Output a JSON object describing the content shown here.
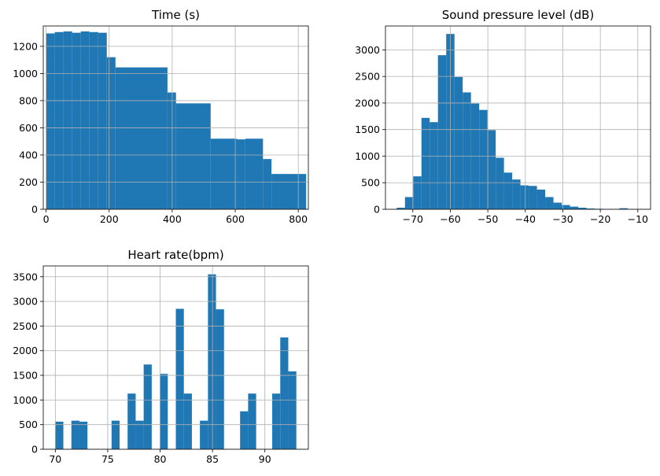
{
  "chart_data": [
    {
      "type": "bar",
      "title": "Time (s)",
      "xlabel": "",
      "ylabel": "",
      "x_range": [
        -9,
        832
      ],
      "y_range": [
        0,
        1350
      ],
      "x_ticks": [
        0,
        200,
        400,
        600,
        800
      ],
      "y_ticks": [
        0,
        200,
        400,
        600,
        800,
        1000,
        1200
      ],
      "grid": true,
      "bins": [
        {
          "x0": 0,
          "x1": 27.5,
          "value": 1295
        },
        {
          "x0": 27.5,
          "x1": 55,
          "value": 1305
        },
        {
          "x0": 55,
          "x1": 82.5,
          "value": 1310
        },
        {
          "x0": 82.5,
          "x1": 110,
          "value": 1300
        },
        {
          "x0": 110,
          "x1": 137.5,
          "value": 1310
        },
        {
          "x0": 137.5,
          "x1": 165,
          "value": 1305
        },
        {
          "x0": 165,
          "x1": 192.5,
          "value": 1300
        },
        {
          "x0": 192.5,
          "x1": 220,
          "value": 1120
        },
        {
          "x0": 220,
          "x1": 385,
          "value": 1045
        },
        {
          "x0": 385,
          "x1": 412,
          "value": 860
        },
        {
          "x0": 412,
          "x1": 522,
          "value": 780
        },
        {
          "x0": 522,
          "x1": 605,
          "value": 520
        },
        {
          "x0": 605,
          "x1": 632,
          "value": 515
        },
        {
          "x0": 632,
          "x1": 688,
          "value": 520
        },
        {
          "x0": 688,
          "x1": 715,
          "value": 370
        },
        {
          "x0": 715,
          "x1": 825,
          "value": 260
        }
      ]
    },
    {
      "type": "bar",
      "title": "Sound pressure level (dB)",
      "xlabel": "",
      "ylabel": "",
      "x_range": [
        -77.3,
        -6.6
      ],
      "y_range": [
        0,
        3450
      ],
      "x_ticks": [
        -70,
        -60,
        -50,
        -40,
        -30,
        -20,
        -10
      ],
      "y_ticks": [
        0,
        500,
        1000,
        1500,
        2000,
        2500,
        3000
      ],
      "grid": true,
      "bins": [
        {
          "x0": -74.3,
          "x1": -72.1,
          "value": 30
        },
        {
          "x0": -72.1,
          "x1": -69.9,
          "value": 230
        },
        {
          "x0": -69.9,
          "x1": -67.7,
          "value": 620
        },
        {
          "x0": -67.7,
          "x1": -65.5,
          "value": 1720
        },
        {
          "x0": -65.5,
          "x1": -63.3,
          "value": 1640
        },
        {
          "x0": -63.3,
          "x1": -61.1,
          "value": 2900
        },
        {
          "x0": -61.1,
          "x1": -58.9,
          "value": 3300
        },
        {
          "x0": -58.9,
          "x1": -56.7,
          "value": 2490
        },
        {
          "x0": -56.7,
          "x1": -54.5,
          "value": 2200
        },
        {
          "x0": -54.5,
          "x1": -52.3,
          "value": 1990
        },
        {
          "x0": -52.3,
          "x1": -50.1,
          "value": 1870
        },
        {
          "x0": -50.1,
          "x1": -47.9,
          "value": 1490
        },
        {
          "x0": -47.9,
          "x1": -45.7,
          "value": 970
        },
        {
          "x0": -45.7,
          "x1": -43.5,
          "value": 690
        },
        {
          "x0": -43.5,
          "x1": -41.3,
          "value": 560
        },
        {
          "x0": -41.3,
          "x1": -39.1,
          "value": 450
        },
        {
          "x0": -39.1,
          "x1": -36.9,
          "value": 440
        },
        {
          "x0": -36.9,
          "x1": -34.7,
          "value": 370
        },
        {
          "x0": -34.7,
          "x1": -32.5,
          "value": 230
        },
        {
          "x0": -32.5,
          "x1": -30.3,
          "value": 125
        },
        {
          "x0": -30.3,
          "x1": -28.1,
          "value": 80
        },
        {
          "x0": -28.1,
          "x1": -25.9,
          "value": 50
        },
        {
          "x0": -25.9,
          "x1": -23.7,
          "value": 30
        },
        {
          "x0": -23.7,
          "x1": -21.5,
          "value": 15
        },
        {
          "x0": -21.5,
          "x1": -19.3,
          "value": 10
        },
        {
          "x0": -19.3,
          "x1": -17.1,
          "value": 5
        },
        {
          "x0": -17.1,
          "x1": -14.9,
          "value": 5
        },
        {
          "x0": -14.9,
          "x1": -12.7,
          "value": 20
        },
        {
          "x0": -12.7,
          "x1": -10.5,
          "value": 5
        }
      ]
    },
    {
      "type": "bar",
      "title": "Heart rate(bpm)",
      "xlabel": "",
      "ylabel": "",
      "x_range": [
        68.85,
        94.15
      ],
      "y_range": [
        0,
        3720
      ],
      "x_ticks": [
        70,
        75,
        80,
        85,
        90
      ],
      "y_ticks": [
        0,
        500,
        1000,
        1500,
        2000,
        2500,
        3000,
        3500
      ],
      "grid": true,
      "bins": [
        {
          "x0": 70.0,
          "x1": 70.767,
          "value": 560
        },
        {
          "x0": 71.533,
          "x1": 72.3,
          "value": 580
        },
        {
          "x0": 72.3,
          "x1": 73.067,
          "value": 560
        },
        {
          "x0": 75.367,
          "x1": 76.133,
          "value": 580
        },
        {
          "x0": 76.9,
          "x1": 77.667,
          "value": 1130
        },
        {
          "x0": 77.667,
          "x1": 78.433,
          "value": 580
        },
        {
          "x0": 78.433,
          "x1": 79.2,
          "value": 1720
        },
        {
          "x0": 79.967,
          "x1": 80.733,
          "value": 1530
        },
        {
          "x0": 81.5,
          "x1": 82.267,
          "value": 2850
        },
        {
          "x0": 82.267,
          "x1": 83.033,
          "value": 1130
        },
        {
          "x0": 83.8,
          "x1": 84.567,
          "value": 580
        },
        {
          "x0": 84.567,
          "x1": 85.333,
          "value": 3550
        },
        {
          "x0": 85.333,
          "x1": 86.1,
          "value": 2840
        },
        {
          "x0": 87.633,
          "x1": 88.4,
          "value": 770
        },
        {
          "x0": 88.4,
          "x1": 89.167,
          "value": 1130
        },
        {
          "x0": 90.7,
          "x1": 91.467,
          "value": 1130
        },
        {
          "x0": 91.467,
          "x1": 92.233,
          "value": 2270
        },
        {
          "x0": 92.233,
          "x1": 93.0,
          "value": 1580
        }
      ]
    }
  ],
  "style": {
    "bar_color": "#1f77b4",
    "grid_color": "#b0b0b0",
    "axis_color": "#000000"
  }
}
